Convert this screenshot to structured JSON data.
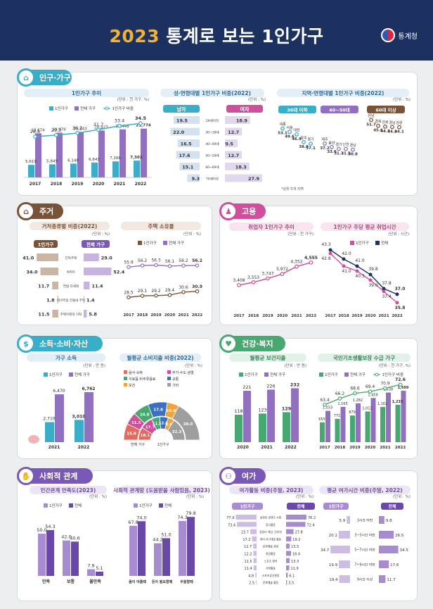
{
  "header": {
    "year": "2023",
    "title": "통계로 보는 1인가구",
    "org": "통계청"
  },
  "colors": {
    "navy": "#1c3160",
    "teal": "#3aaec8",
    "purple": "#9170bf",
    "brown": "#7a5238",
    "pink": "#cf4f9c",
    "green": "#47a870",
    "violet": "#7a58b5",
    "gray": "#888888"
  },
  "sections": {
    "population": {
      "title": "인구·가구",
      "icon": "house-people-icon"
    },
    "housing": {
      "title": "주거",
      "icon": "house-icon"
    },
    "employment": {
      "title": "고용",
      "icon": "worker-icon"
    },
    "income": {
      "title": "소득·소비·자산",
      "icon": "coin-hand-icon"
    },
    "health": {
      "title": "건강·복지",
      "icon": "heartbeat-icon"
    },
    "social": {
      "title": "사회적 관계",
      "icon": "handshake-icon"
    },
    "leisure": {
      "title": "여가",
      "icon": "bicycle-icon"
    }
  },
  "chart_data": [
    {
      "id": "household-trend",
      "type": "bar",
      "title": "1인가구 추이",
      "unit": "(단위 : 천 가구, %)",
      "legend": [
        "1인가구",
        "전체 가구",
        "1인가구 비중"
      ],
      "categories": [
        "2017",
        "2018",
        "2019",
        "2020",
        "2021",
        "2022"
      ],
      "series": [
        {
          "name": "1인가구",
          "values": [
            5619,
            5849,
            6148,
            6643,
            7166,
            7502
          ],
          "labels": [
            "5,619",
            "5,849",
            "6,148",
            "6,643",
            "7,166",
            "7,502"
          ]
        },
        {
          "name": "전체 가구",
          "values": [
            19674,
            19979,
            20343,
            20927,
            21448,
            21774
          ],
          "labels": [
            "19,674",
            "19,979",
            "20,343",
            "20,927",
            "21,448",
            "21,774"
          ]
        },
        {
          "name": "1인가구 비중",
          "values": [
            28.6,
            29.3,
            30.2,
            31.7,
            33.4,
            34.5
          ],
          "labels": [
            "28.6",
            "29.3",
            "30.2",
            "31.7",
            "33.4",
            "34.5"
          ]
        }
      ]
    },
    {
      "id": "age-sex",
      "type": "bar",
      "title": "성·연령대별 1인가구 비중(2022)",
      "unit": "(단위 : %)",
      "headers": [
        "남자",
        "여자"
      ],
      "categories": [
        "29세이하",
        "30~39세",
        "40~49세",
        "50~59세",
        "60~69세",
        "70세이상"
      ],
      "series": [
        {
          "name": "남자",
          "values": [
            19.5,
            22.0,
            16.5,
            17.6,
            15.1,
            9.3
          ]
        },
        {
          "name": "여자",
          "values": [
            18.9,
            12.7,
            9.5,
            12.7,
            18.3,
            27.9
          ]
        }
      ]
    },
    {
      "id": "region",
      "type": "scatter",
      "title": "지역·연령대별 1인가구 비중(2022)",
      "unit": "(단위 : %)",
      "groups": [
        {
          "name": "30대 이하",
          "points": [
            {
              "label": "세종",
              "value": 53.1
            },
            {
              "label": "서울",
              "value": 49.6
            },
            {
              "label": "대전",
              "value": 46.9
            },
            {
              "label": "광주",
              "value": 38.8
            },
            {
              "label": "경기",
              "value": 37.1
            }
          ]
        },
        {
          "name": "40~50대",
          "points": [
            {
              "label": "제주",
              "value": 37.2
            },
            {
              "label": "울산",
              "value": 33.6
            },
            {
              "label": "경기",
              "value": 31.7
            },
            {
              "label": "인천",
              "value": 31.5
            },
            {
              "label": "경남",
              "value": 30.8
            }
          ]
        },
        {
          "name": "60대 이상",
          "points": [
            {
              "label": "전남",
              "value": 51.7
            },
            {
              "label": "경북",
              "value": 45.6
            },
            {
              "label": "전북",
              "value": 44.7
            },
            {
              "label": "경남",
              "value": 44.3
            },
            {
              "label": "강원",
              "value": 44.1
            }
          ]
        }
      ],
      "note": "*상위 5개 지역"
    },
    {
      "id": "dwelling",
      "type": "bar",
      "title": "거처종류별 비중(2022)",
      "unit": "(단위 : %)",
      "headers": [
        "1인가구",
        "전체 가구"
      ],
      "categories": [
        "단독주택",
        "아파트",
        "연립·다세대",
        "비거주용 건물내 주택",
        "주택이외의 거처"
      ],
      "series": [
        {
          "name": "1인가구",
          "values": [
            41.0,
            34.0,
            11.7,
            1.8,
            11.5
          ]
        },
        {
          "name": "전체 가구",
          "values": [
            29.0,
            52.4,
            11.4,
            1.4,
            5.8
          ]
        }
      ]
    },
    {
      "id": "homeownership",
      "type": "line",
      "title": "주택 소유율",
      "unit": "(단위 : %)",
      "legend": [
        "1인가구",
        "전체 가구"
      ],
      "categories": [
        "2017",
        "2018",
        "2019",
        "2020",
        "2021",
        "2022"
      ],
      "series": [
        {
          "name": "1인가구",
          "values": [
            28.5,
            29.1,
            29.2,
            29.4,
            30.6,
            30.9
          ]
        },
        {
          "name": "전체 가구",
          "values": [
            55.9,
            56.2,
            56.3,
            56.1,
            56.2,
            56.2
          ]
        }
      ]
    },
    {
      "id": "employed",
      "type": "line",
      "title": "취업자 1인가구 추이",
      "unit": "(단위 : 천 가구)",
      "categories": [
        "2017",
        "2018",
        "2019",
        "2020",
        "2021",
        "2022"
      ],
      "series": [
        {
          "name": "취업자 1인가구",
          "values": [
            3408,
            3553,
            3747,
            3972,
            4352,
            4555
          ],
          "labels": [
            "3,408",
            "3,553",
            "3,747",
            "3,972",
            "4,352",
            "4,555"
          ]
        }
      ]
    },
    {
      "id": "work-hours",
      "type": "line",
      "title": "1인가구 주당 평균 취업시간",
      "unit": "(단위 : 시간)",
      "legend": [
        "1인가구",
        "전체"
      ],
      "categories": [
        "2017",
        "2018",
        "2019",
        "2020",
        "2021",
        "2022"
      ],
      "series": [
        {
          "name": "1인가구",
          "values": [
            42.8,
            41.0,
            40.3,
            39.0,
            37.4,
            35.8
          ]
        },
        {
          "name": "전체",
          "values": [
            43.3,
            42.0,
            41.0,
            39.8,
            37.8,
            37.0
          ]
        }
      ]
    },
    {
      "id": "income",
      "type": "bar",
      "title": "가구 소득",
      "unit": "(단위 : 만 원)",
      "legend": [
        "1인가구",
        "전체 가구"
      ],
      "categories": [
        "2021",
        "2022"
      ],
      "series": [
        {
          "name": "1인가구",
          "values": [
            2710,
            3010
          ],
          "labels": [
            "2,710",
            "3,010"
          ]
        },
        {
          "name": "전체 가구",
          "values": [
            6470,
            6762
          ],
          "labels": [
            "6,470",
            "6,762"
          ]
        }
      ]
    },
    {
      "id": "consumption",
      "type": "pie",
      "title": "월평균 소비지출 비중(2022)",
      "unit": "(단위 : %)",
      "legend": [
        "음식·숙박",
        "주거·수도·광열",
        "식료품·비주류음료",
        "교통",
        "보건",
        "기타"
      ],
      "inner_label": "1인가구",
      "outer_label": "전체 가구",
      "series": [
        {
          "name": "1인가구",
          "values": [
            18.1,
            17.7,
            11.8,
            12.0,
            8.8,
            32.3
          ]
        },
        {
          "name": "전체 가구",
          "values": [
            15.0,
            11.5,
            14.8,
            17.8,
            10.8,
            38.0
          ]
        }
      ]
    },
    {
      "id": "health-spend",
      "type": "bar",
      "title": "월평균 보건지출",
      "unit": "(단위 : 만 원)",
      "legend": [
        "1인가구",
        "전체 가구"
      ],
      "categories": [
        "2020",
        "2021",
        "2022"
      ],
      "series": [
        {
          "name": "1인가구",
          "values": [
            118,
            123,
            129
          ]
        },
        {
          "name": "전체 가구",
          "values": [
            221,
            226,
            232
          ]
        }
      ]
    },
    {
      "id": "welfare",
      "type": "bar",
      "title": "국민기초생활보장 수급 가구",
      "unit": "(단위 : 천 가구, %)",
      "legend": [
        "1인가구",
        "전체 가구",
        "1인가구 비중"
      ],
      "categories": [
        "2017",
        "2018",
        "2019",
        "2020",
        "2021",
        "2022"
      ],
      "series": [
        {
          "name": "1인가구",
          "values": [
            655,
            771,
            879,
            1013,
            1161,
            1235
          ],
          "labels": [
            "655",
            "771",
            "879",
            "1,013",
            "1,161",
            "1,235"
          ]
        },
        {
          "name": "전체 가구",
          "values": [
            1033,
            1165,
            1282,
            1459,
            1638,
            1699
          ],
          "labels": [
            "1,033",
            "1,165",
            "1,282",
            "1,459",
            "1,638",
            "1,699"
          ]
        },
        {
          "name": "1인가구 비중",
          "values": [
            63.4,
            66.2,
            68.6,
            69.4,
            70.9,
            72.6
          ],
          "labels": [
            "63.4",
            "66.2",
            "68.6",
            "69.4",
            "70.9",
            "72.6"
          ]
        }
      ]
    },
    {
      "id": "relationship",
      "type": "bar",
      "title": "인간관계 만족도(2023)",
      "unit": "(단위 : %)",
      "legend": [
        "1인가구",
        "전체"
      ],
      "categories": [
        "만족",
        "보통",
        "불만족"
      ],
      "series": [
        {
          "name": "1인가구",
          "values": [
            50.0,
            42.0,
            7.9
          ]
        },
        {
          "name": "전체",
          "values": [
            54.3,
            40.6,
            5.1
          ]
        }
      ]
    },
    {
      "id": "social-network",
      "type": "bar",
      "title": "사회적 관계망 (도움받을 사람있음, 2023)",
      "unit": "(단위 : %)",
      "legend": [
        "1인가구",
        "전체"
      ],
      "categories": [
        "몸이 아플때",
        "돈이 필요할때",
        "우울할때"
      ],
      "series": [
        {
          "name": "1인가구",
          "values": [
            67.8,
            44.2,
            74.3
          ]
        },
        {
          "name": "전체",
          "values": [
            74.0,
            51.0,
            79.8
          ]
        }
      ]
    },
    {
      "id": "leisure-activity",
      "type": "bar",
      "title": "여가활동 비중(주말, 2023)",
      "unit": "(단위 : %)",
      "headers": [
        "1인가구",
        "전체"
      ],
      "categories": [
        "동영상 콘텐츠 시청",
        "휴식활동",
        "컴퓨터 게임, 인터넷",
        "취미·자기개발 활동",
        "문화예술 관람",
        "관광활동",
        "스포츠 참여",
        "사회활동",
        "스포츠경기관람",
        "문화예술 활동"
      ],
      "series": [
        {
          "name": "1인가구",
          "values": [
            77.9,
            73.4,
            23.7,
            17.2,
            12.7,
            12.2,
            11.5,
            11.4,
            4.8,
            2.5
          ]
        },
        {
          "name": "전체",
          "values": [
            76.2,
            72.4,
            27.8,
            19.2,
            13.5,
            18.4,
            13.3,
            11.9,
            6.1,
            3.5
          ]
        }
      ]
    },
    {
      "id": "leisure-time",
      "type": "bar",
      "title": "평균 여가시간 비중(주말, 2022)",
      "unit": "(단위 : %)",
      "headers": [
        "1인가구",
        "전체"
      ],
      "categories": [
        "3시간 미만",
        "3~5시간 미만",
        "5~7시간 미만",
        "7~9시간 미만",
        "9시간 이상"
      ],
      "series": [
        {
          "name": "1인가구",
          "values": [
            5.9,
            20.1,
            34.7,
            19.9,
            19.4
          ]
        },
        {
          "name": "전체",
          "values": [
            9.8,
            26.5,
            34.5,
            17.6,
            11.7
          ]
        }
      ]
    }
  ]
}
